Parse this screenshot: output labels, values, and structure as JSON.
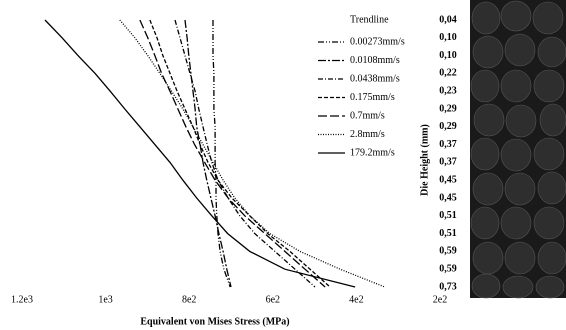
{
  "chart_data": {
    "type": "line",
    "orientation": "horizontal",
    "xlabel": "Equivalent von Mises Stress (MPa)",
    "ylabel": "Die Height (mm)",
    "legend_title": "Trendline",
    "categories": [
      "0,04",
      "0,10",
      "0,10",
      "0,22",
      "0,23",
      "0,29",
      "0,29",
      "0,37",
      "0,37",
      "0,45",
      "0,45",
      "0,51",
      "0,51",
      "0,59",
      "0,59",
      "0,73"
    ],
    "xlim": [
      1200,
      200
    ],
    "xticks": [
      {
        "value": 1200,
        "label": "1.2e3"
      },
      {
        "value": 1000,
        "label": "1e3"
      },
      {
        "value": 800,
        "label": "8e2"
      },
      {
        "value": 600,
        "label": "6e2"
      },
      {
        "value": 400,
        "label": "4e2"
      },
      {
        "value": 200,
        "label": "2e2"
      }
    ],
    "series": [
      {
        "name": "0.00273mm/s",
        "color": "#000",
        "dash": "6,2,1,2,1,2",
        "values": [
          743,
          743,
          743,
          741,
          741,
          741,
          738,
          738,
          738,
          736,
          736,
          734,
          731,
          726,
          717,
          702
        ]
      },
      {
        "name": "0.0108mm/s",
        "color": "#000",
        "dash": "8,2,2,2",
        "values": [
          810,
          805,
          801,
          796,
          791,
          786,
          782,
          774,
          767,
          758,
          748,
          738,
          729,
          719,
          710,
          700
        ]
      },
      {
        "name": "0.0438mm/s",
        "color": "#000",
        "dash": "5,2,1,2",
        "values": [
          834,
          822,
          810,
          798,
          786,
          777,
          767,
          757,
          746,
          731,
          707,
          679,
          643,
          595,
          547,
          499
        ]
      },
      {
        "name": "0.175mm/s",
        "color": "#000",
        "dash": "4,2",
        "values": [
          894,
          877,
          863,
          846,
          829,
          810,
          791,
          774,
          755,
          731,
          698,
          655,
          612,
          559,
          511,
          463
        ]
      },
      {
        "name": "0.7mm/s",
        "color": "#000",
        "dash": "9,3",
        "values": [
          918,
          899,
          882,
          866,
          846,
          827,
          808,
          787,
          763,
          738,
          707,
          667,
          619,
          571,
          523,
          475
        ]
      },
      {
        "name": "2.8mm/s",
        "color": "#000",
        "dash": "1,1.5",
        "values": [
          966,
          930,
          899,
          870,
          842,
          815,
          791,
          767,
          743,
          719,
          691,
          655,
          607,
          535,
          439,
          332
        ]
      },
      {
        "name": "179.2mm/s",
        "color": "#000",
        "dash": "",
        "values": [
          1145,
          1104,
          1066,
          1025,
          989,
          954,
          918,
          882,
          846,
          815,
          782,
          746,
          708,
          655,
          571,
          403
        ]
      }
    ]
  }
}
